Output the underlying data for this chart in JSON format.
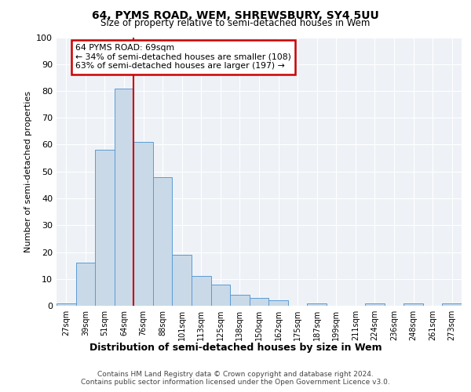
{
  "title1": "64, PYMS ROAD, WEM, SHREWSBURY, SY4 5UU",
  "title2": "Size of property relative to semi-detached houses in Wem",
  "xlabel": "Distribution of semi-detached houses by size in Wem",
  "ylabel": "Number of semi-detached properties",
  "annotation_title": "64 PYMS ROAD: 69sqm",
  "annotation_line1": "← 34% of semi-detached houses are smaller (108)",
  "annotation_line2": "63% of semi-detached houses are larger (197) →",
  "footer1": "Contains HM Land Registry data © Crown copyright and database right 2024.",
  "footer2": "Contains public sector information licensed under the Open Government Licence v3.0.",
  "bar_color": "#c9d9e8",
  "bar_edge_color": "#5b9bd5",
  "vline_color": "#cc0000",
  "categories": [
    "27sqm",
    "39sqm",
    "51sqm",
    "64sqm",
    "76sqm",
    "88sqm",
    "101sqm",
    "113sqm",
    "125sqm",
    "138sqm",
    "150sqm",
    "162sqm",
    "175sqm",
    "187sqm",
    "199sqm",
    "211sqm",
    "224sqm",
    "236sqm",
    "248sqm",
    "261sqm",
    "273sqm"
  ],
  "values": [
    1,
    16,
    58,
    81,
    61,
    48,
    19,
    11,
    8,
    4,
    3,
    2,
    0,
    1,
    0,
    0,
    1,
    0,
    1,
    0,
    1
  ],
  "vline_x": 3.5,
  "ylim": [
    0,
    100
  ],
  "yticks": [
    0,
    10,
    20,
    30,
    40,
    50,
    60,
    70,
    80,
    90,
    100
  ],
  "background_color": "#eef2f7",
  "fig_width": 6.0,
  "fig_height": 5.0,
  "dpi": 100
}
